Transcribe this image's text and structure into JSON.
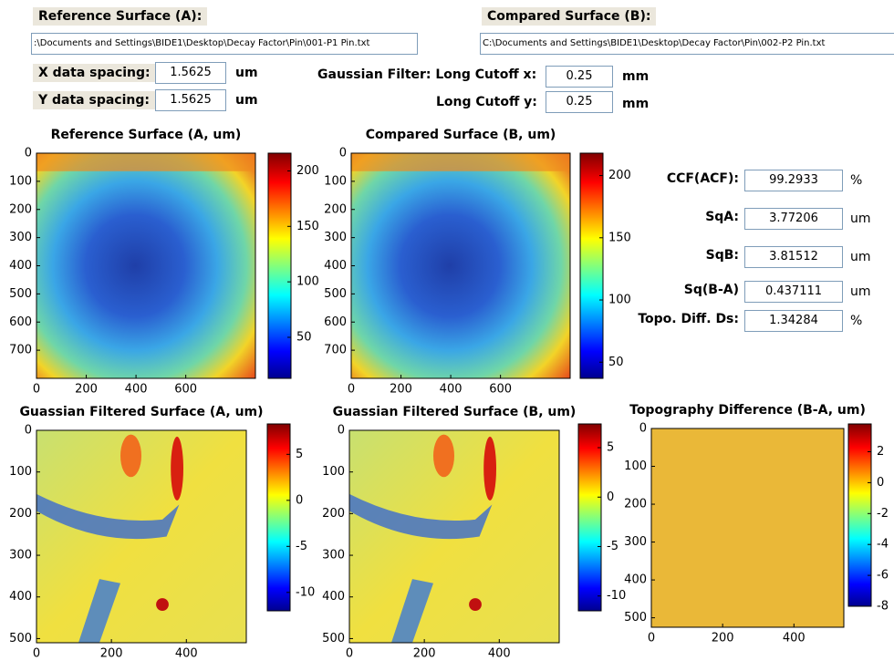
{
  "source": {
    "reference_label": "Reference Surface (A):",
    "reference_path": ":\\Documents and Settings\\BIDE1\\Desktop\\Decay Factor\\Pin\\001-P1 Pin.txt",
    "compared_label": "Compared Surface (B):",
    "compared_path": "C:\\Documents and Settings\\BIDE1\\Desktop\\Decay Factor\\Pin\\002-P2 Pin.txt"
  },
  "spacing": {
    "x_label": "X data spacing:",
    "x_value": "1.5625",
    "x_unit": "um",
    "y_label": "Y data spacing:",
    "y_value": "1.5625",
    "y_unit": "um"
  },
  "filter": {
    "x_label": "Gaussian Filter: Long Cutoff x:",
    "x_value": "0.25",
    "x_unit": "mm",
    "y_label": "Long Cutoff y:",
    "y_value": "0.25",
    "y_unit": "mm"
  },
  "results": [
    {
      "label": "CCF(ACF):",
      "value": "99.2933",
      "unit": "%"
    },
    {
      "label": "SqA:",
      "value": "3.77206",
      "unit": "um"
    },
    {
      "label": "SqB:",
      "value": "3.81512",
      "unit": "um"
    },
    {
      "label": "Sq(B-A)",
      "value": "0.437111",
      "unit": "um"
    },
    {
      "label": "Topo. Diff. Ds:",
      "value": "1.34284",
      "unit": "%"
    }
  ],
  "plots": [
    {
      "title": "Reference Surface (A, um)",
      "xlim": [
        0,
        880
      ],
      "ylim": [
        0,
        800
      ],
      "xticks": [
        0,
        200,
        400,
        600
      ],
      "yticks": [
        0,
        100,
        200,
        300,
        400,
        500,
        600,
        700
      ],
      "clim": [
        13,
        216
      ],
      "cticks": [
        50,
        100,
        150,
        200
      ]
    },
    {
      "title": "Compared Surface (B, um)",
      "xlim": [
        0,
        880
      ],
      "ylim": [
        0,
        800
      ],
      "xticks": [
        0,
        200,
        400,
        600
      ],
      "yticks": [
        0,
        100,
        200,
        300,
        400,
        500,
        600,
        700
      ],
      "clim": [
        37,
        218
      ],
      "cticks": [
        50,
        100,
        150,
        200
      ]
    },
    {
      "title": "Guassian Filtered Surface (A, um)",
      "xlim": [
        0,
        560
      ],
      "ylim": [
        0,
        510
      ],
      "xticks": [
        0,
        200,
        400
      ],
      "yticks": [
        0,
        100,
        200,
        300,
        400,
        500
      ],
      "clim": [
        -12,
        8.3
      ],
      "cticks": [
        -10,
        -5,
        0,
        5
      ]
    },
    {
      "title": "Guassian Filtered Surface (B, um)",
      "xlim": [
        0,
        560
      ],
      "ylim": [
        0,
        510
      ],
      "xticks": [
        0,
        200,
        400
      ],
      "yticks": [
        0,
        100,
        200,
        300,
        400,
        500
      ],
      "clim": [
        -11.5,
        7.4
      ],
      "cticks": [
        -10,
        -5,
        0,
        5
      ]
    },
    {
      "title": "Topography Difference (B-A, um)",
      "xlim": [
        0,
        540
      ],
      "ylim": [
        0,
        525
      ],
      "xticks": [
        0,
        200,
        400
      ],
      "yticks": [
        0,
        100,
        200,
        300,
        400,
        500
      ],
      "clim": [
        -8.0,
        3.8
      ],
      "cticks": [
        -8,
        -6,
        -4,
        -2,
        0,
        2
      ]
    }
  ]
}
